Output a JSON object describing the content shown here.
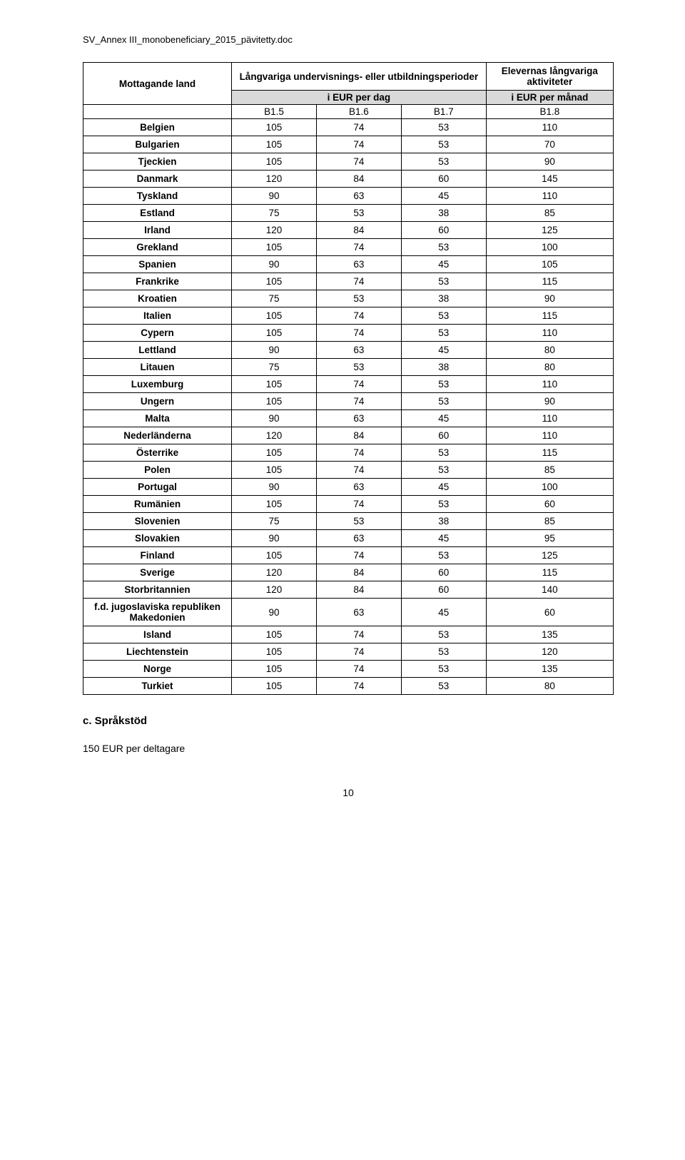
{
  "header_path": "SV_Annex III_monobeneficiary_2015_pävitetty.doc",
  "table": {
    "col1_header": "Mottagande land",
    "col_mid_header": "Långvariga undervisnings- eller utbildningsperioder",
    "col_right_header": "Elevernas långvariga aktiviteter",
    "sub_left": "i EUR per dag",
    "sub_right": "i EUR per månad",
    "codes": [
      "B1.5",
      "B1.6",
      "B1.7",
      "B1.8"
    ],
    "rows": [
      {
        "label": "Belgien",
        "v": [
          105,
          74,
          53,
          110
        ]
      },
      {
        "label": "Bulgarien",
        "v": [
          105,
          74,
          53,
          70
        ]
      },
      {
        "label": "Tjeckien",
        "v": [
          105,
          74,
          53,
          90
        ]
      },
      {
        "label": "Danmark",
        "v": [
          120,
          84,
          60,
          145
        ]
      },
      {
        "label": "Tyskland",
        "v": [
          90,
          63,
          45,
          110
        ]
      },
      {
        "label": "Estland",
        "v": [
          75,
          53,
          38,
          85
        ]
      },
      {
        "label": "Irland",
        "v": [
          120,
          84,
          60,
          125
        ]
      },
      {
        "label": "Grekland",
        "v": [
          105,
          74,
          53,
          100
        ]
      },
      {
        "label": "Spanien",
        "v": [
          90,
          63,
          45,
          105
        ]
      },
      {
        "label": "Frankrike",
        "v": [
          105,
          74,
          53,
          115
        ]
      },
      {
        "label": "Kroatien",
        "v": [
          75,
          53,
          38,
          90
        ]
      },
      {
        "label": "Italien",
        "v": [
          105,
          74,
          53,
          115
        ]
      },
      {
        "label": "Cypern",
        "v": [
          105,
          74,
          53,
          110
        ]
      },
      {
        "label": "Lettland",
        "v": [
          90,
          63,
          45,
          80
        ]
      },
      {
        "label": "Litauen",
        "v": [
          75,
          53,
          38,
          80
        ]
      },
      {
        "label": "Luxemburg",
        "v": [
          105,
          74,
          53,
          110
        ]
      },
      {
        "label": "Ungern",
        "v": [
          105,
          74,
          53,
          90
        ]
      },
      {
        "label": "Malta",
        "v": [
          90,
          63,
          45,
          110
        ]
      },
      {
        "label": "Nederländerna",
        "v": [
          120,
          84,
          60,
          110
        ]
      },
      {
        "label": "Österrike",
        "v": [
          105,
          74,
          53,
          115
        ]
      },
      {
        "label": "Polen",
        "v": [
          105,
          74,
          53,
          85
        ]
      },
      {
        "label": "Portugal",
        "v": [
          90,
          63,
          45,
          100
        ]
      },
      {
        "label": "Rumänien",
        "v": [
          105,
          74,
          53,
          60
        ]
      },
      {
        "label": "Slovenien",
        "v": [
          75,
          53,
          38,
          85
        ]
      },
      {
        "label": "Slovakien",
        "v": [
          90,
          63,
          45,
          95
        ]
      },
      {
        "label": "Finland",
        "v": [
          105,
          74,
          53,
          125
        ]
      },
      {
        "label": "Sverige",
        "v": [
          120,
          84,
          60,
          115
        ]
      },
      {
        "label": "Storbritannien",
        "v": [
          120,
          84,
          60,
          140
        ]
      },
      {
        "label": "f.d. jugoslaviska republiken Makedonien",
        "v": [
          90,
          63,
          45,
          60
        ]
      },
      {
        "label": "Island",
        "v": [
          105,
          74,
          53,
          135
        ]
      },
      {
        "label": "Liechtenstein",
        "v": [
          105,
          74,
          53,
          120
        ]
      },
      {
        "label": "Norge",
        "v": [
          105,
          74,
          53,
          135
        ]
      },
      {
        "label": "Turkiet",
        "v": [
          105,
          74,
          53,
          80
        ]
      }
    ]
  },
  "footer": {
    "heading": "c. Språkstöd",
    "text": "150 EUR per deltagare"
  },
  "page_number": "10"
}
